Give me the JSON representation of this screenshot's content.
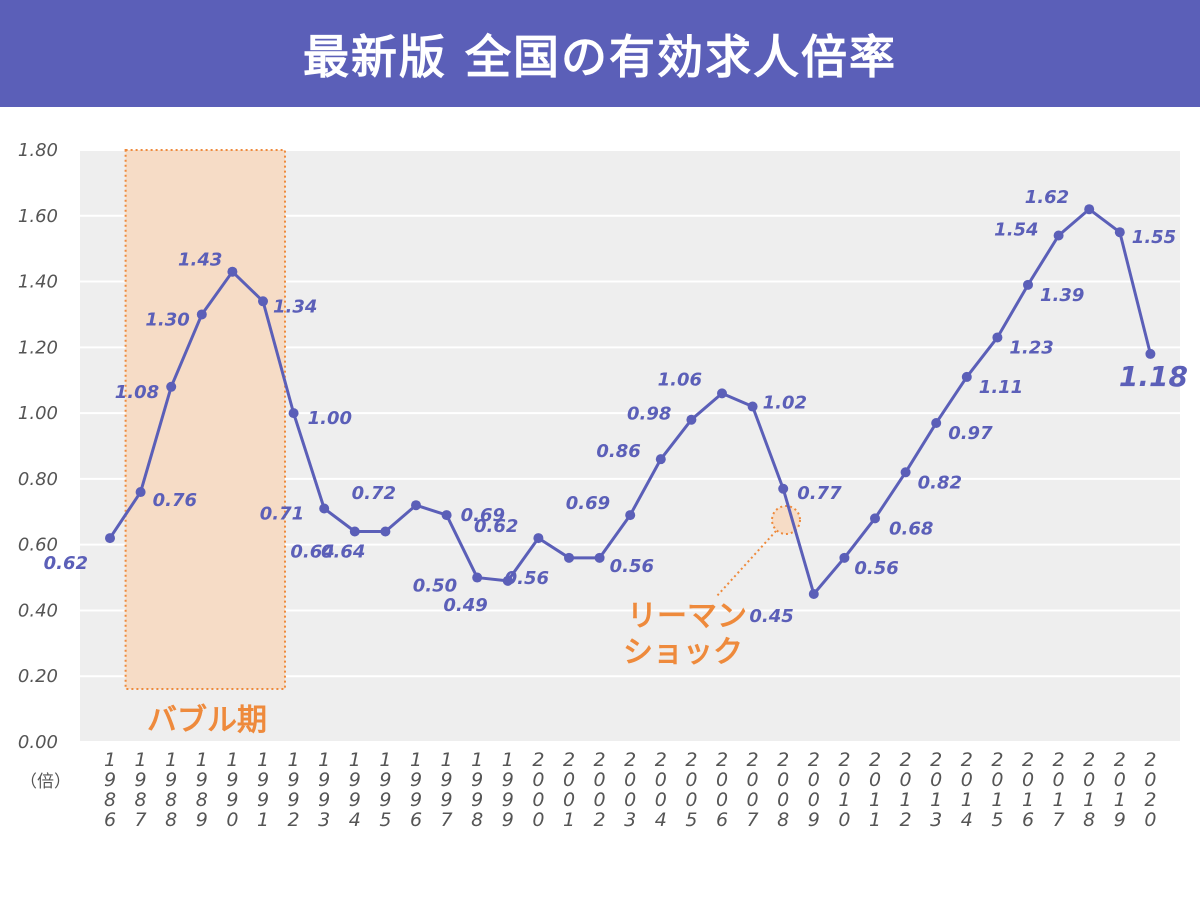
{
  "header": {
    "title": "最新版  全国の有効求人倍率"
  },
  "colors": {
    "header_bg": "#5b5fb8",
    "line": "#5b5fb8",
    "plot_bg": "#eeeeee",
    "annotation": "#ee8a3c",
    "bubble_fill": "#f6dcc6"
  },
  "chart_data": {
    "type": "line",
    "title": "最新版  全国の有効求人倍率",
    "y_unit_label": "（倍）",
    "ylim": [
      0,
      1.8
    ],
    "yticks": [
      "0.00",
      "0.20",
      "0.40",
      "0.60",
      "0.80",
      "1.00",
      "1.20",
      "1.40",
      "1.60",
      "1.80"
    ],
    "grid": true,
    "categories": [
      "1986",
      "1987",
      "1988",
      "1989",
      "1990",
      "1991",
      "1992",
      "1993",
      "1994",
      "1995",
      "1996",
      "1997",
      "1998",
      "1999",
      "2000",
      "2001",
      "2002",
      "2003",
      "2004",
      "2005",
      "2006",
      "2007",
      "2008",
      "2009",
      "2010",
      "2011",
      "2012",
      "2013",
      "2014",
      "2015",
      "2016",
      "2017",
      "2018",
      "2019",
      "2020"
    ],
    "values": [
      0.62,
      0.76,
      1.08,
      1.3,
      1.43,
      1.34,
      1.0,
      0.71,
      0.64,
      0.64,
      0.72,
      0.69,
      0.5,
      0.49,
      0.62,
      0.56,
      0.56,
      0.69,
      0.86,
      0.98,
      1.06,
      1.02,
      0.77,
      0.45,
      0.56,
      0.68,
      0.82,
      0.97,
      1.11,
      1.23,
      1.39,
      1.54,
      1.62,
      1.55,
      1.18
    ],
    "data_labels": [
      "0.62",
      "0.76",
      "1.08",
      "1.30",
      "1.43",
      "1.34",
      "1.00",
      "0.71",
      "0.64",
      "0.64",
      "0.72",
      "0.69",
      "0.50",
      "0.49",
      "0.62",
      "0.56",
      "0.56",
      "0.69",
      "0.86",
      "0.98",
      "1.06",
      "1.02",
      "0.77",
      "0.45",
      "0.56",
      "0.68",
      "0.82",
      "0.97",
      "1.11",
      "1.23",
      "1.39",
      "1.54",
      "1.62",
      "1.55",
      "1.18"
    ],
    "annotations": {
      "bubble": {
        "label": "バブル期",
        "from": "1987",
        "to": "1991"
      },
      "lehman": {
        "line1": "リーマン",
        "line2": "ショック",
        "at": "2008"
      }
    }
  }
}
